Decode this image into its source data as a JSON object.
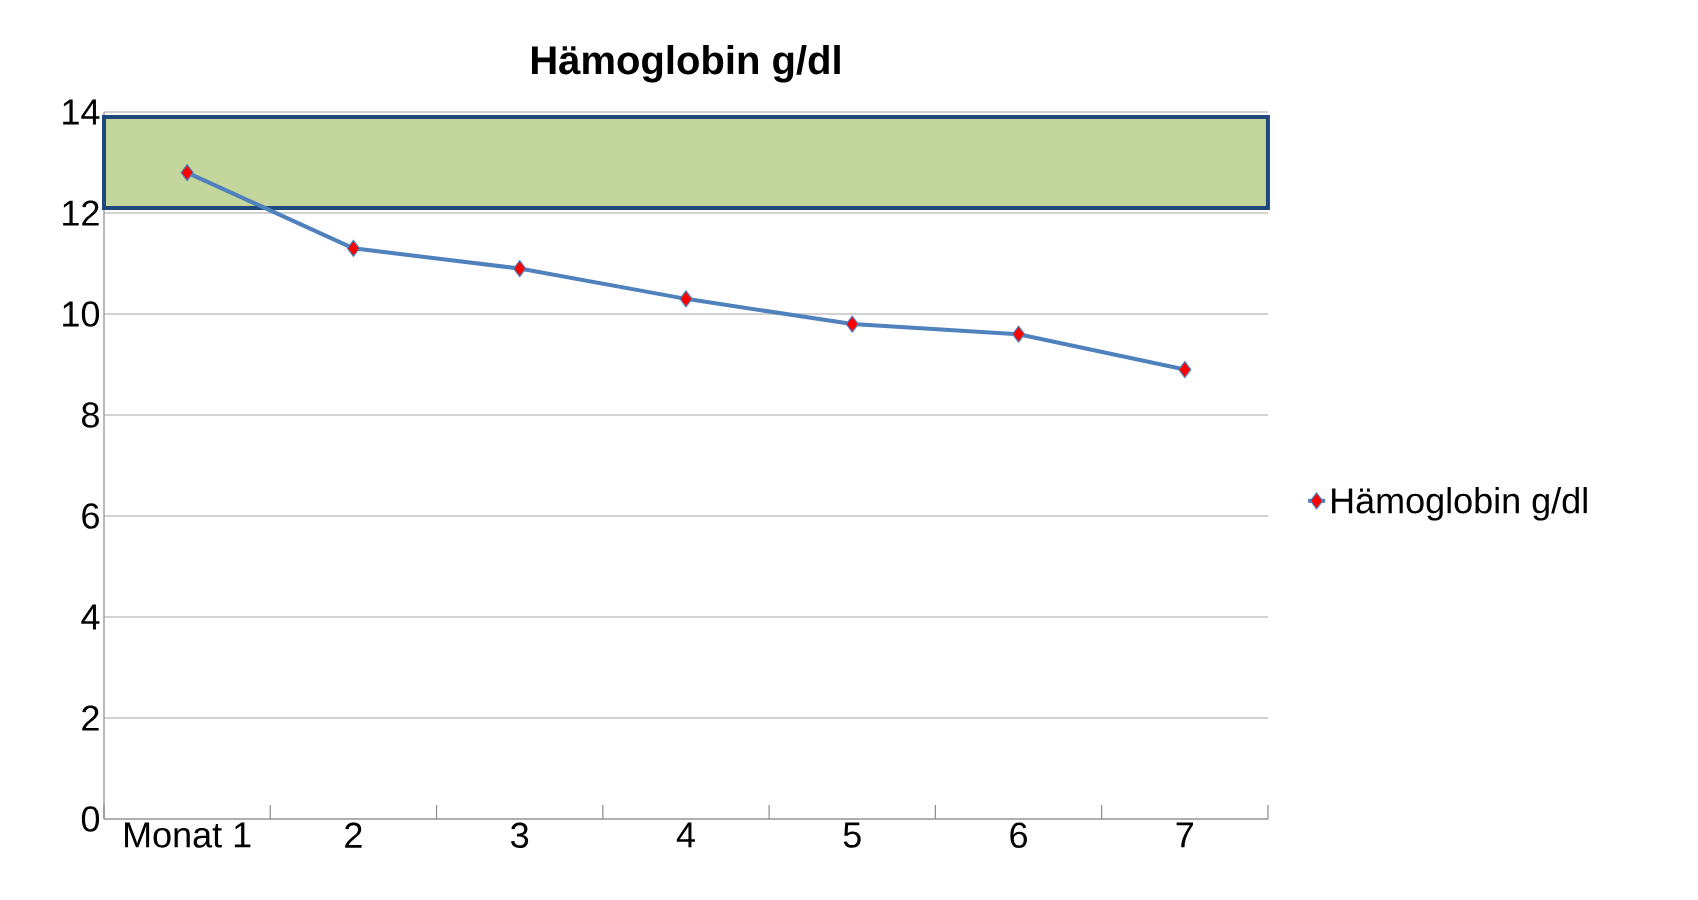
{
  "chart_data": {
    "type": "line",
    "title": "Hämoglobin g/dl",
    "categories": [
      "Monat 1",
      "2",
      "3",
      "4",
      "5",
      "6",
      "7"
    ],
    "series": [
      {
        "name": "Hämoglobin g/dl",
        "color": "#4f81bd",
        "values": [
          12.8,
          11.3,
          10.9,
          10.3,
          9.8,
          9.6,
          8.9
        ]
      }
    ],
    "ylim": [
      0,
      14
    ],
    "yticks": [
      0,
      2,
      4,
      6,
      8,
      10,
      12,
      14
    ],
    "bands": [
      {
        "axis": "y",
        "from": 12.1,
        "to": 13.9,
        "color": "#c3d69b"
      }
    ],
    "grid": "y",
    "legend": "right",
    "marker": "diamond",
    "line_style": "solid"
  }
}
